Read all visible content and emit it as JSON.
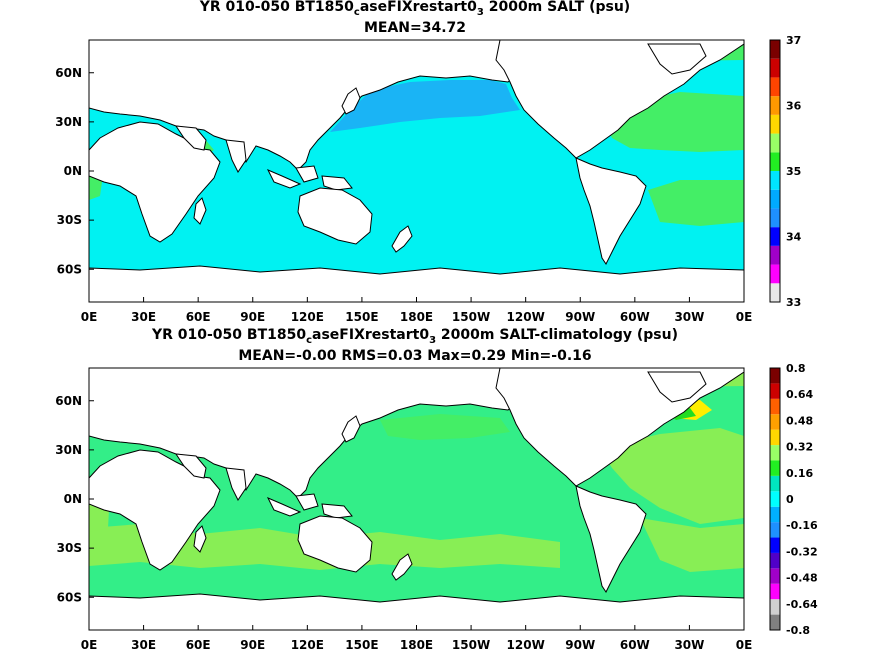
{
  "panel1": {
    "title_pre": "YR 010-050 BT1850",
    "title_sub1": "c",
    "title_mid": "aseFIXrestart0",
    "title_sub2": "3",
    "title_post": " 2000m SALT (psu)",
    "stats": "MEAN=34.72",
    "colorbar_labels": [
      "37",
      "36",
      "35",
      "34",
      "33"
    ],
    "colorbar_colors": [
      "#e8e8e8",
      "#ff00ff",
      "#a000c8",
      "#0000ff",
      "#1e90ff",
      "#00aaff",
      "#00e5ff",
      "#22ee22",
      "#99ff66",
      "#ffd700",
      "#ff9900",
      "#ff4400",
      "#cc0000",
      "#7a0000"
    ]
  },
  "panel2": {
    "title_pre": "YR 010-050 BT1850",
    "title_sub1": "c",
    "title_mid": "aseFIXrestart0",
    "title_sub2": "3",
    "title_post": " 2000m SALT-climatology (psu)",
    "stats": "MEAN=-0.00   RMS=0.03   Max=0.29   Min=-0.16",
    "colorbar_labels": [
      "0.8",
      "0.64",
      "0.48",
      "0.32",
      "0.16",
      "0",
      "-0.16",
      "-0.32",
      "-0.48",
      "-0.64",
      "-0.8"
    ],
    "colorbar_colors": [
      "#808080",
      "#d0d0d0",
      "#ff00ff",
      "#a000c8",
      "#5000c8",
      "#0000ff",
      "#1e90ff",
      "#00b0ff",
      "#00ffff",
      "#00e5c0",
      "#22ee22",
      "#99ff66",
      "#ffd700",
      "#ffa000",
      "#ff6000",
      "#cc0000",
      "#7a0000"
    ]
  },
  "axes": {
    "lat_labels": [
      "60N",
      "30N",
      "0N",
      "30S",
      "60S"
    ],
    "lon_labels": [
      "0E",
      "30E",
      "60E",
      "90E",
      "120E",
      "150E",
      "180E",
      "150W",
      "120W",
      "90W",
      "60W",
      "30W",
      "0E"
    ]
  },
  "colors": {
    "ocean_mean": "#00f2f2",
    "ocean_pacific_north": "#1ab4f5",
    "ocean_pacific_core": "#14a8f0",
    "atlantic_salty": "#44ee66",
    "anomaly_zero": "#33ee88",
    "anomaly_pos": "#88ee55",
    "anomaly_high": "#ffee00",
    "land": "#ffffff"
  }
}
